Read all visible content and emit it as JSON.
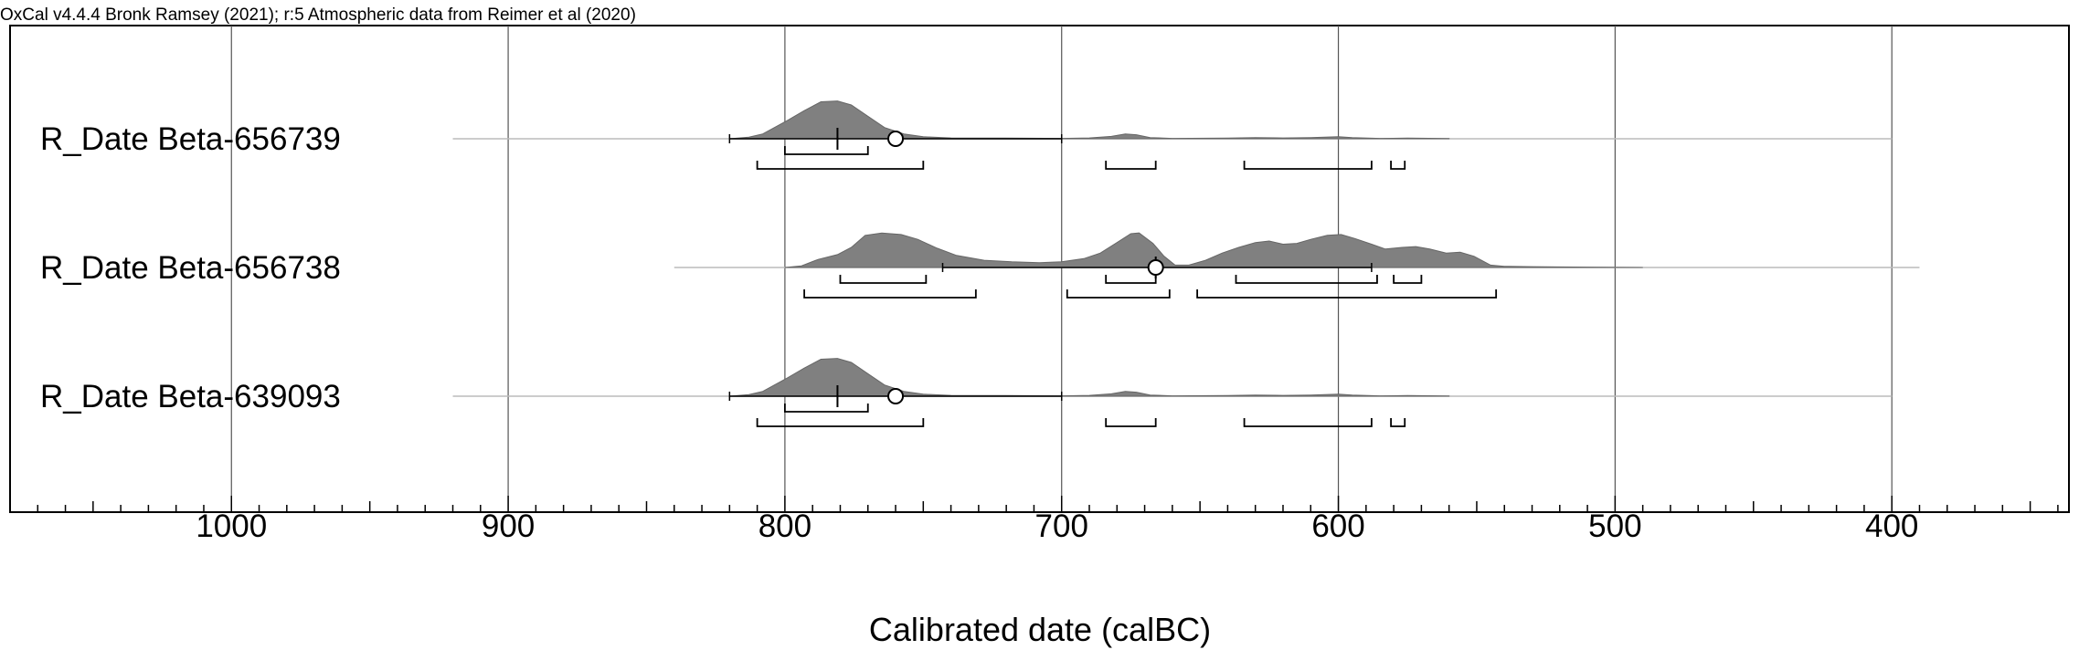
{
  "header": "OxCal v4.4.4 Bronk Ramsey (2021); r:5 Atmospheric data from Reimer et al (2020)",
  "chart_data": {
    "type": "area",
    "title": "",
    "xlabel": "Calibrated date (calBC)",
    "xlim": [
      1080,
      336
    ],
    "x_reversed": true,
    "major_ticks": [
      1000,
      900,
      800,
      700,
      600,
      500,
      400
    ],
    "minor_tick_step": 10,
    "grid": "vertical lines at major ticks",
    "series": [
      {
        "name": "R_Date Beta-656739",
        "baseline_range": [
          920,
          400
        ],
        "distribution": [
          [
            820,
            0.0
          ],
          [
            813,
            0.04
          ],
          [
            808,
            0.12
          ],
          [
            800,
            0.42
          ],
          [
            793,
            0.7
          ],
          [
            787,
            0.92
          ],
          [
            781,
            0.94
          ],
          [
            776,
            0.84
          ],
          [
            770,
            0.56
          ],
          [
            764,
            0.28
          ],
          [
            757,
            0.12
          ],
          [
            750,
            0.05
          ],
          [
            740,
            0.02
          ],
          [
            720,
            0.015
          ],
          [
            700,
            0.01
          ],
          [
            690,
            0.02
          ],
          [
            682,
            0.06
          ],
          [
            677,
            0.12
          ],
          [
            673,
            0.1
          ],
          [
            668,
            0.03
          ],
          [
            660,
            0.01
          ],
          [
            640,
            0.015
          ],
          [
            630,
            0.03
          ],
          [
            620,
            0.02
          ],
          [
            610,
            0.03
          ],
          [
            600,
            0.05
          ],
          [
            595,
            0.03
          ],
          [
            585,
            0.01
          ],
          [
            575,
            0.015
          ],
          [
            560,
            0.005
          ]
        ],
        "median_bar": [
          820,
          700
        ],
        "median": 781,
        "mean": 760,
        "range_68": [
          [
            800,
            770
          ]
        ],
        "range_95": [
          [
            810,
            750
          ],
          [
            684,
            666
          ],
          [
            634,
            588
          ],
          [
            581,
            576
          ]
        ]
      },
      {
        "name": "R_Date Beta-656738",
        "baseline_range": [
          840,
          390
        ],
        "distribution": [
          [
            800,
            0.0
          ],
          [
            794,
            0.04
          ],
          [
            788,
            0.2
          ],
          [
            781,
            0.32
          ],
          [
            776,
            0.5
          ],
          [
            771,
            0.8
          ],
          [
            765,
            0.86
          ],
          [
            758,
            0.82
          ],
          [
            752,
            0.7
          ],
          [
            745,
            0.48
          ],
          [
            738,
            0.3
          ],
          [
            728,
            0.18
          ],
          [
            718,
            0.14
          ],
          [
            708,
            0.12
          ],
          [
            700,
            0.14
          ],
          [
            692,
            0.22
          ],
          [
            686,
            0.36
          ],
          [
            680,
            0.62
          ],
          [
            675,
            0.84
          ],
          [
            672,
            0.86
          ],
          [
            667,
            0.6
          ],
          [
            663,
            0.28
          ],
          [
            659,
            0.06
          ],
          [
            654,
            0.06
          ],
          [
            648,
            0.18
          ],
          [
            642,
            0.36
          ],
          [
            636,
            0.5
          ],
          [
            630,
            0.62
          ],
          [
            625,
            0.66
          ],
          [
            620,
            0.58
          ],
          [
            615,
            0.6
          ],
          [
            610,
            0.7
          ],
          [
            604,
            0.8
          ],
          [
            599,
            0.82
          ],
          [
            594,
            0.72
          ],
          [
            588,
            0.58
          ],
          [
            583,
            0.46
          ],
          [
            577,
            0.5
          ],
          [
            572,
            0.52
          ],
          [
            567,
            0.46
          ],
          [
            561,
            0.36
          ],
          [
            556,
            0.38
          ],
          [
            551,
            0.28
          ],
          [
            545,
            0.06
          ],
          [
            540,
            0.03
          ],
          [
            530,
            0.02
          ],
          [
            510,
            0.01
          ],
          [
            490,
            0.0
          ]
        ],
        "median_bar": [
          743,
          588
        ],
        "median": 666,
        "mean": 666,
        "range_68": [
          [
            780,
            749
          ],
          [
            684,
            666
          ],
          [
            637,
            586
          ],
          [
            580,
            570
          ]
        ],
        "range_95": [
          [
            793,
            731
          ],
          [
            698,
            661
          ],
          [
            651,
            543
          ]
        ]
      },
      {
        "name": "R_Date Beta-639093",
        "baseline_range": [
          920,
          400
        ],
        "distribution": [
          [
            820,
            0.0
          ],
          [
            813,
            0.04
          ],
          [
            808,
            0.12
          ],
          [
            800,
            0.42
          ],
          [
            793,
            0.7
          ],
          [
            787,
            0.92
          ],
          [
            781,
            0.94
          ],
          [
            776,
            0.84
          ],
          [
            770,
            0.56
          ],
          [
            764,
            0.28
          ],
          [
            757,
            0.12
          ],
          [
            750,
            0.05
          ],
          [
            740,
            0.02
          ],
          [
            720,
            0.015
          ],
          [
            700,
            0.01
          ],
          [
            690,
            0.02
          ],
          [
            682,
            0.06
          ],
          [
            677,
            0.12
          ],
          [
            673,
            0.1
          ],
          [
            668,
            0.03
          ],
          [
            660,
            0.01
          ],
          [
            640,
            0.015
          ],
          [
            630,
            0.03
          ],
          [
            620,
            0.02
          ],
          [
            610,
            0.03
          ],
          [
            600,
            0.05
          ],
          [
            595,
            0.03
          ],
          [
            585,
            0.01
          ],
          [
            575,
            0.015
          ],
          [
            560,
            0.005
          ]
        ],
        "median_bar": [
          820,
          700
        ],
        "median": 781,
        "mean": 760,
        "range_68": [
          [
            800,
            770
          ]
        ],
        "range_95": [
          [
            810,
            750
          ],
          [
            684,
            666
          ],
          [
            634,
            588
          ],
          [
            581,
            576
          ]
        ]
      }
    ]
  }
}
